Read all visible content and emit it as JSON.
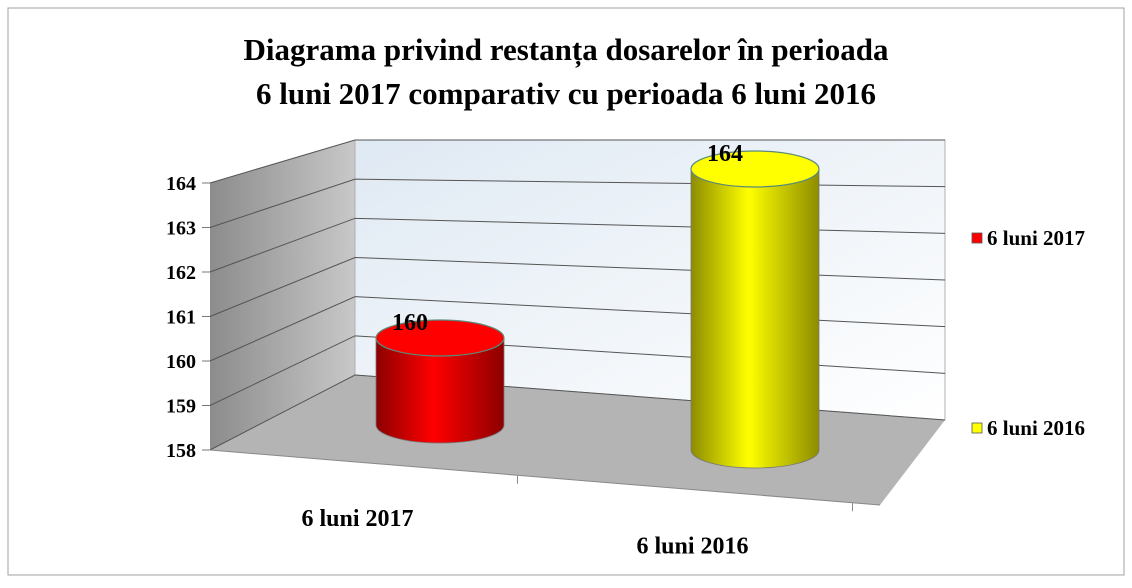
{
  "chart_data": {
    "type": "bar3d",
    "title": [
      "Diagrama privind restanța dosarelor în perioada",
      "6 luni 2017 comparativ cu perioada 6 luni 2016"
    ],
    "categories": [
      "6 luni 2017",
      "6 luni 2016"
    ],
    "series": [
      {
        "name": "6 luni 2017",
        "color": "#ff0000",
        "values": [
          160,
          null
        ]
      },
      {
        "name": "6 luni 2016",
        "color": "#ffff00",
        "values": [
          null,
          164
        ]
      }
    ],
    "ylim": [
      158,
      164
    ],
    "yticks": [
      158,
      159,
      160,
      161,
      162,
      163,
      164
    ],
    "grid": true,
    "legend": "right"
  }
}
